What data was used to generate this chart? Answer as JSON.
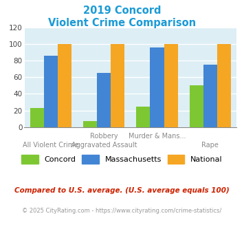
{
  "title_line1": "2019 Concord",
  "title_line2": "Violent Crime Comparison",
  "title_color": "#1c9bd6",
  "concord": [
    23,
    7,
    25,
    50
  ],
  "massachusetts": [
    86,
    65,
    96,
    75
  ],
  "national": [
    100,
    100,
    100,
    100
  ],
  "concord_color": "#7dc832",
  "massachusetts_color": "#4285d4",
  "national_color": "#f5a623",
  "ylim": [
    0,
    120
  ],
  "yticks": [
    0,
    20,
    40,
    60,
    80,
    100,
    120
  ],
  "plot_bg": "#ddeef5",
  "grid_color": "#ffffff",
  "cat_labels_top": [
    "",
    "Robbery",
    "Murder & Mans...",
    ""
  ],
  "cat_labels_bottom": [
    "All Violent Crime",
    "Aggravated Assault",
    "",
    "Rape"
  ],
  "legend_labels": [
    "Concord",
    "Massachusetts",
    "National"
  ],
  "footnote1": "Compared to U.S. average. (U.S. average equals 100)",
  "footnote2": "© 2025 CityRating.com - https://www.cityrating.com/crime-statistics/",
  "footnote1_color": "#cc2200",
  "footnote2_color": "#999999",
  "footnote2_link_color": "#1c9bd6"
}
